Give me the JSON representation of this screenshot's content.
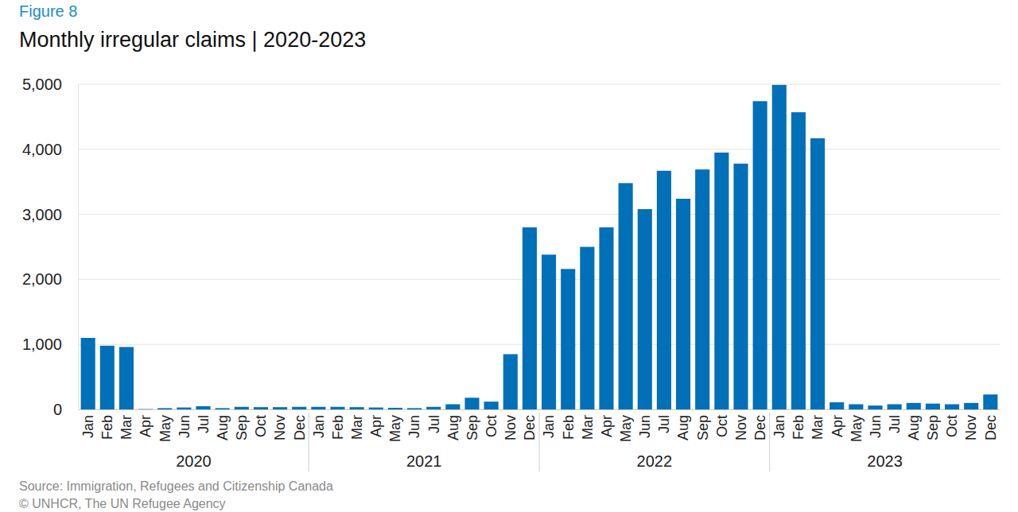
{
  "chart_data": {
    "type": "bar",
    "figure_label": "Figure 8",
    "title": "Monthly irregular claims | 2020-2023",
    "source": "Source: Immigration, Refugees and Citizenship Canada",
    "credit": "© UNHCR, The UN Refugee Agency",
    "categories": [
      "Jan",
      "Feb",
      "Mar",
      "Apr",
      "May",
      "Jun",
      "Jul",
      "Aug",
      "Sep",
      "Oct",
      "Nov",
      "Dec",
      "Jan",
      "Feb",
      "Mar",
      "Apr",
      "May",
      "Jun",
      "Jul",
      "Aug",
      "Sep",
      "Oct",
      "Nov",
      "Dec",
      "Jan",
      "Feb",
      "Mar",
      "Apr",
      "May",
      "Jun",
      "Jul",
      "Aug",
      "Sep",
      "Oct",
      "Nov",
      "Dec",
      "Jan",
      "Feb",
      "Mar",
      "Apr",
      "May",
      "Jun",
      "Jul",
      "Aug",
      "Sep",
      "Oct",
      "Nov",
      "Dec"
    ],
    "year_labels": [
      "2020",
      "2021",
      "2022",
      "2023"
    ],
    "values": [
      1100,
      980,
      960,
      5,
      20,
      30,
      50,
      20,
      40,
      35,
      35,
      40,
      40,
      40,
      35,
      30,
      25,
      20,
      40,
      80,
      180,
      120,
      850,
      2800,
      2380,
      2160,
      2500,
      2800,
      3480,
      3080,
      3670,
      3240,
      3690,
      3950,
      3780,
      4740,
      4990,
      4570,
      4170,
      110,
      80,
      60,
      80,
      100,
      90,
      80,
      100,
      230
    ],
    "color": "#0070b8",
    "ylim": [
      0,
      5000
    ],
    "yticks": [
      0,
      {
        "value": 1000,
        "label": "1,000"
      },
      {
        "value": 2000,
        "label": "2,000"
      },
      {
        "value": 3000,
        "label": "3,000"
      },
      {
        "value": 4000,
        "label": "4,000"
      },
      {
        "value": 5000,
        "label": "5,000"
      }
    ],
    "grid": true
  }
}
